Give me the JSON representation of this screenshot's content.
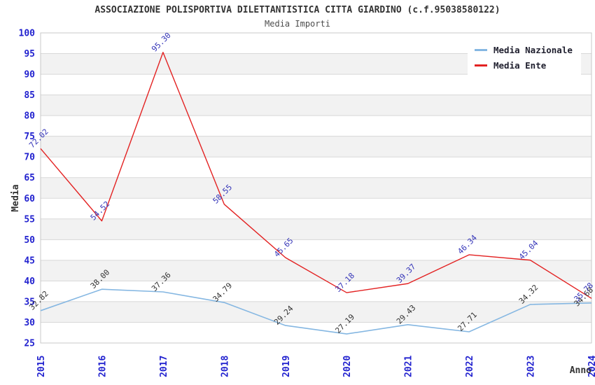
{
  "title": "ASSOCIAZIONE POLISPORTIVA DILETTANTISTICA CITTA GIARDINO (c.f.95038580122)",
  "subtitle": "Media Importi",
  "chart_data": {
    "type": "line",
    "x": [
      2015,
      2016,
      2017,
      2018,
      2019,
      2020,
      2021,
      2022,
      2023,
      2024
    ],
    "series": [
      {
        "name": "Media Nazionale",
        "color": "#85b7e2",
        "label_color": "#333333",
        "line_width": 1.6,
        "values": [
          32.82,
          38.0,
          37.36,
          34.79,
          29.24,
          27.19,
          29.43,
          27.71,
          34.32,
          34.68
        ]
      },
      {
        "name": "Media Ente",
        "color": "#e32222",
        "label_color": "#3434b8",
        "line_width": 1.4,
        "values": [
          72.02,
          54.52,
          95.3,
          58.55,
          45.65,
          37.18,
          39.37,
          46.34,
          45.04,
          35.78
        ]
      }
    ],
    "xlabel": "Anno",
    "ylabel": "Media",
    "ylim": [
      25,
      100
    ],
    "ytick_step": 5,
    "grid": "horizontal-bands",
    "legend_position": "top-right",
    "band_colors": [
      "#ffffff",
      "#f2f2f2"
    ],
    "gridline_color": "#d8d8d8",
    "border_color": "#c8c8c8",
    "tick_label_color": "#2222cf",
    "axis_title_color": "#333333"
  }
}
